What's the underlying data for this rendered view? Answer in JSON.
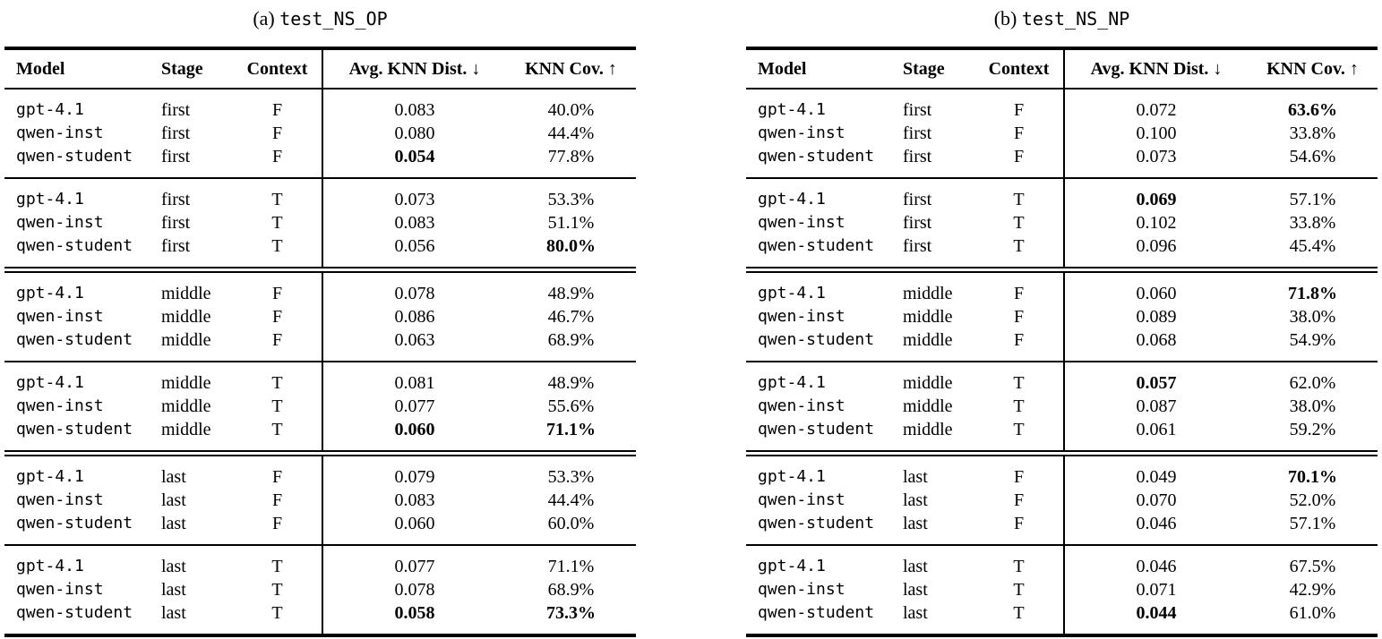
{
  "page": {
    "background": "#ffffff",
    "text_color": "#000000",
    "rule_color": "#000000"
  },
  "columns": [
    {
      "key": "model",
      "label": "Model"
    },
    {
      "key": "stage",
      "label": "Stage"
    },
    {
      "key": "context",
      "label": "Context"
    },
    {
      "key": "avg_knn_dist",
      "label": "Avg. KNN Dist. ↓"
    },
    {
      "key": "knn_cov",
      "label": "KNN Cov. ↑"
    }
  ],
  "tables": [
    {
      "caption": {
        "prefix": "(a)",
        "code": "test_NS_OP"
      },
      "blocks": [
        {
          "separator_before": "none",
          "rows": [
            {
              "model": "gpt-4.1",
              "stage": "first",
              "context": "F",
              "avg_knn_dist": "0.083",
              "knn_cov": "40.0%",
              "bold_dist": false,
              "bold_cov": false
            },
            {
              "model": "qwen-inst",
              "stage": "first",
              "context": "F",
              "avg_knn_dist": "0.080",
              "knn_cov": "44.4%",
              "bold_dist": false,
              "bold_cov": false
            },
            {
              "model": "qwen-student",
              "stage": "first",
              "context": "F",
              "avg_knn_dist": "0.054",
              "knn_cov": "77.8%",
              "bold_dist": true,
              "bold_cov": false
            }
          ]
        },
        {
          "separator_before": "single",
          "rows": [
            {
              "model": "gpt-4.1",
              "stage": "first",
              "context": "T",
              "avg_knn_dist": "0.073",
              "knn_cov": "53.3%",
              "bold_dist": false,
              "bold_cov": false
            },
            {
              "model": "qwen-inst",
              "stage": "first",
              "context": "T",
              "avg_knn_dist": "0.083",
              "knn_cov": "51.1%",
              "bold_dist": false,
              "bold_cov": false
            },
            {
              "model": "qwen-student",
              "stage": "first",
              "context": "T",
              "avg_knn_dist": "0.056",
              "knn_cov": "80.0%",
              "bold_dist": false,
              "bold_cov": true
            }
          ]
        },
        {
          "separator_before": "double",
          "rows": [
            {
              "model": "gpt-4.1",
              "stage": "middle",
              "context": "F",
              "avg_knn_dist": "0.078",
              "knn_cov": "48.9%",
              "bold_dist": false,
              "bold_cov": false
            },
            {
              "model": "qwen-inst",
              "stage": "middle",
              "context": "F",
              "avg_knn_dist": "0.086",
              "knn_cov": "46.7%",
              "bold_dist": false,
              "bold_cov": false
            },
            {
              "model": "qwen-student",
              "stage": "middle",
              "context": "F",
              "avg_knn_dist": "0.063",
              "knn_cov": "68.9%",
              "bold_dist": false,
              "bold_cov": false
            }
          ]
        },
        {
          "separator_before": "single",
          "rows": [
            {
              "model": "gpt-4.1",
              "stage": "middle",
              "context": "T",
              "avg_knn_dist": "0.081",
              "knn_cov": "48.9%",
              "bold_dist": false,
              "bold_cov": false
            },
            {
              "model": "qwen-inst",
              "stage": "middle",
              "context": "T",
              "avg_knn_dist": "0.077",
              "knn_cov": "55.6%",
              "bold_dist": false,
              "bold_cov": false
            },
            {
              "model": "qwen-student",
              "stage": "middle",
              "context": "T",
              "avg_knn_dist": "0.060",
              "knn_cov": "71.1%",
              "bold_dist": true,
              "bold_cov": true
            }
          ]
        },
        {
          "separator_before": "double",
          "rows": [
            {
              "model": "gpt-4.1",
              "stage": "last",
              "context": "F",
              "avg_knn_dist": "0.079",
              "knn_cov": "53.3%",
              "bold_dist": false,
              "bold_cov": false
            },
            {
              "model": "qwen-inst",
              "stage": "last",
              "context": "F",
              "avg_knn_dist": "0.083",
              "knn_cov": "44.4%",
              "bold_dist": false,
              "bold_cov": false
            },
            {
              "model": "qwen-student",
              "stage": "last",
              "context": "F",
              "avg_knn_dist": "0.060",
              "knn_cov": "60.0%",
              "bold_dist": false,
              "bold_cov": false
            }
          ]
        },
        {
          "separator_before": "single",
          "rows": [
            {
              "model": "gpt-4.1",
              "stage": "last",
              "context": "T",
              "avg_knn_dist": "0.077",
              "knn_cov": "71.1%",
              "bold_dist": false,
              "bold_cov": false
            },
            {
              "model": "qwen-inst",
              "stage": "last",
              "context": "T",
              "avg_knn_dist": "0.078",
              "knn_cov": "68.9%",
              "bold_dist": false,
              "bold_cov": false
            },
            {
              "model": "qwen-student",
              "stage": "last",
              "context": "T",
              "avg_knn_dist": "0.058",
              "knn_cov": "73.3%",
              "bold_dist": true,
              "bold_cov": true
            }
          ]
        }
      ]
    },
    {
      "caption": {
        "prefix": "(b)",
        "code": "test_NS_NP"
      },
      "blocks": [
        {
          "separator_before": "none",
          "rows": [
            {
              "model": "gpt-4.1",
              "stage": "first",
              "context": "F",
              "avg_knn_dist": "0.072",
              "knn_cov": "63.6%",
              "bold_dist": false,
              "bold_cov": true
            },
            {
              "model": "qwen-inst",
              "stage": "first",
              "context": "F",
              "avg_knn_dist": "0.100",
              "knn_cov": "33.8%",
              "bold_dist": false,
              "bold_cov": false
            },
            {
              "model": "qwen-student",
              "stage": "first",
              "context": "F",
              "avg_knn_dist": "0.073",
              "knn_cov": "54.6%",
              "bold_dist": false,
              "bold_cov": false
            }
          ]
        },
        {
          "separator_before": "single",
          "rows": [
            {
              "model": "gpt-4.1",
              "stage": "first",
              "context": "T",
              "avg_knn_dist": "0.069",
              "knn_cov": "57.1%",
              "bold_dist": true,
              "bold_cov": false
            },
            {
              "model": "qwen-inst",
              "stage": "first",
              "context": "T",
              "avg_knn_dist": "0.102",
              "knn_cov": "33.8%",
              "bold_dist": false,
              "bold_cov": false
            },
            {
              "model": "qwen-student",
              "stage": "first",
              "context": "T",
              "avg_knn_dist": "0.096",
              "knn_cov": "45.4%",
              "bold_dist": false,
              "bold_cov": false
            }
          ]
        },
        {
          "separator_before": "double",
          "rows": [
            {
              "model": "gpt-4.1",
              "stage": "middle",
              "context": "F",
              "avg_knn_dist": "0.060",
              "knn_cov": "71.8%",
              "bold_dist": false,
              "bold_cov": true
            },
            {
              "model": "qwen-inst",
              "stage": "middle",
              "context": "F",
              "avg_knn_dist": "0.089",
              "knn_cov": "38.0%",
              "bold_dist": false,
              "bold_cov": false
            },
            {
              "model": "qwen-student",
              "stage": "middle",
              "context": "F",
              "avg_knn_dist": "0.068",
              "knn_cov": "54.9%",
              "bold_dist": false,
              "bold_cov": false
            }
          ]
        },
        {
          "separator_before": "single",
          "rows": [
            {
              "model": "gpt-4.1",
              "stage": "middle",
              "context": "T",
              "avg_knn_dist": "0.057",
              "knn_cov": "62.0%",
              "bold_dist": true,
              "bold_cov": false
            },
            {
              "model": "qwen-inst",
              "stage": "middle",
              "context": "T",
              "avg_knn_dist": "0.087",
              "knn_cov": "38.0%",
              "bold_dist": false,
              "bold_cov": false
            },
            {
              "model": "qwen-student",
              "stage": "middle",
              "context": "T",
              "avg_knn_dist": "0.061",
              "knn_cov": "59.2%",
              "bold_dist": false,
              "bold_cov": false
            }
          ]
        },
        {
          "separator_before": "double",
          "rows": [
            {
              "model": "gpt-4.1",
              "stage": "last",
              "context": "F",
              "avg_knn_dist": "0.049",
              "knn_cov": "70.1%",
              "bold_dist": false,
              "bold_cov": true
            },
            {
              "model": "qwen-inst",
              "stage": "last",
              "context": "F",
              "avg_knn_dist": "0.070",
              "knn_cov": "52.0%",
              "bold_dist": false,
              "bold_cov": false
            },
            {
              "model": "qwen-student",
              "stage": "last",
              "context": "F",
              "avg_knn_dist": "0.046",
              "knn_cov": "57.1%",
              "bold_dist": false,
              "bold_cov": false
            }
          ]
        },
        {
          "separator_before": "single",
          "rows": [
            {
              "model": "gpt-4.1",
              "stage": "last",
              "context": "T",
              "avg_knn_dist": "0.046",
              "knn_cov": "67.5%",
              "bold_dist": false,
              "bold_cov": false
            },
            {
              "model": "qwen-inst",
              "stage": "last",
              "context": "T",
              "avg_knn_dist": "0.071",
              "knn_cov": "42.9%",
              "bold_dist": false,
              "bold_cov": false
            },
            {
              "model": "qwen-student",
              "stage": "last",
              "context": "T",
              "avg_knn_dist": "0.044",
              "knn_cov": "61.0%",
              "bold_dist": true,
              "bold_cov": false
            }
          ]
        }
      ]
    }
  ]
}
